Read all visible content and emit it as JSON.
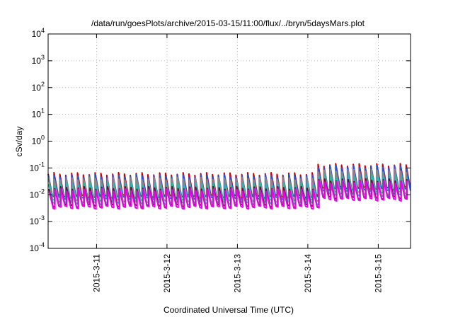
{
  "chart_data": {
    "type": "line",
    "title": "/data/run/goesPlots/archive/2015-03-15/11:00/flux/../bryn/5daysMars.plot",
    "xlabel": "Coordinated Universal Time (UTC)",
    "ylabel": "cSv/day",
    "y_scale": "log",
    "ylim": [
      0.0001,
      10000
    ],
    "y_ticks": [
      {
        "value": 0.0001,
        "base": "10",
        "exp": "-4"
      },
      {
        "value": 0.001,
        "base": "10",
        "exp": "-3"
      },
      {
        "value": 0.01,
        "base": "10",
        "exp": "-2"
      },
      {
        "value": 0.1,
        "base": "10",
        "exp": "-1"
      },
      {
        "value": 1,
        "base": "10",
        "exp": "0"
      },
      {
        "value": 10,
        "base": "10",
        "exp": "1"
      },
      {
        "value": 100,
        "base": "10",
        "exp": "2"
      },
      {
        "value": 1000,
        "base": "10",
        "exp": "3"
      },
      {
        "value": 10000,
        "base": "10",
        "exp": "4"
      }
    ],
    "xlim": [
      "2015-03-10T07:30",
      "2015-03-15T11:00"
    ],
    "x_ticks": [
      {
        "value": "2015-03-11T00:00",
        "label": "2015-3-11"
      },
      {
        "value": "2015-03-12T00:00",
        "label": "2015-3-12"
      },
      {
        "value": "2015-03-13T00:00",
        "label": "2015-3-13"
      },
      {
        "value": "2015-03-14T00:00",
        "label": "2015-3-14"
      },
      {
        "value": "2015-03-15T00:00",
        "label": "2015-3-15"
      }
    ],
    "grid": true,
    "legend": "none",
    "sawtooth_period_hours": 2,
    "series": [
      {
        "color": "#cc0000",
        "peak_low": 0.06,
        "peak_high": 0.13,
        "trough_low": 0.009,
        "trough_high": 0.018
      },
      {
        "color": "#2255dd",
        "peak_low": 0.05,
        "peak_high": 0.11,
        "trough_low": 0.008,
        "trough_high": 0.016
      },
      {
        "color": "#888888",
        "peak_low": 0.04,
        "peak_high": 0.08,
        "trough_low": 0.006,
        "trough_high": 0.012
      },
      {
        "color": "#22bbaa",
        "peak_low": 0.025,
        "peak_high": 0.05,
        "trough_low": 0.005,
        "trough_high": 0.01
      },
      {
        "color": "#6a0d2a",
        "peak_low": 0.018,
        "peak_high": 0.035,
        "trough_low": 0.004,
        "trough_high": 0.008
      },
      {
        "color": "#ee00ee",
        "peak_low": 0.015,
        "peak_high": 0.03,
        "trough_low": 0.0035,
        "trough_high": 0.007
      }
    ]
  }
}
